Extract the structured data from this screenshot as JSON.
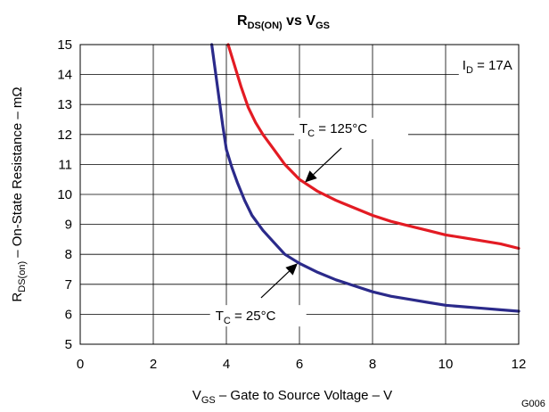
{
  "chart_data": {
    "type": "line",
    "title": {
      "main": "R",
      "sub": "DS(ON)",
      "mid": " vs V",
      "sub2": "GS"
    },
    "xlabel": {
      "main": "V",
      "sub": "GS",
      "rest": " – Gate to Source Voltage – V"
    },
    "ylabel": {
      "main": "R",
      "sub": "DS(on)",
      "rest": " – On-State Resistance – mΩ"
    },
    "xlim": [
      0,
      12
    ],
    "ylim": [
      5,
      15
    ],
    "xticks": [
      "0",
      "2",
      "4",
      "6",
      "8",
      "10",
      "12"
    ],
    "yticks": [
      "5",
      "6",
      "7",
      "8",
      "9",
      "10",
      "11",
      "12",
      "13",
      "14",
      "15"
    ],
    "grid": true,
    "figure_code": "G006",
    "condition": {
      "main": "I",
      "sub": "D",
      "rest": " = 17A"
    },
    "series": [
      {
        "color": "#e31b23",
        "label": {
          "main": "T",
          "sub": "C",
          "rest": " = 125°C"
        },
        "x": [
          4.05,
          4.2,
          4.4,
          4.6,
          4.8,
          5.0,
          5.3,
          5.6,
          6.0,
          6.5,
          7.0,
          7.5,
          8.0,
          8.5,
          9.0,
          9.5,
          10.0,
          10.5,
          11.0,
          11.5,
          12.0
        ],
        "y": [
          15.0,
          14.4,
          13.6,
          12.9,
          12.4,
          12.0,
          11.5,
          11.0,
          10.5,
          10.1,
          9.8,
          9.55,
          9.3,
          9.1,
          8.95,
          8.8,
          8.65,
          8.55,
          8.45,
          8.35,
          8.2
        ]
      },
      {
        "color": "#2b2a8a",
        "label": {
          "main": "T",
          "sub": "C",
          "rest": " = 25°C"
        },
        "x": [
          3.6,
          3.7,
          3.8,
          3.9,
          4.0,
          4.15,
          4.3,
          4.5,
          4.7,
          5.0,
          5.3,
          5.6,
          6.0,
          6.5,
          7.0,
          7.5,
          8.0,
          8.5,
          9.0,
          9.5,
          10.0,
          10.5,
          11.0,
          11.5,
          12.0
        ],
        "y": [
          15.0,
          14.1,
          13.2,
          12.3,
          11.5,
          10.9,
          10.4,
          9.8,
          9.3,
          8.8,
          8.4,
          8.0,
          7.7,
          7.4,
          7.15,
          6.95,
          6.75,
          6.6,
          6.5,
          6.4,
          6.3,
          6.25,
          6.2,
          6.15,
          6.1
        ]
      }
    ],
    "annotations": [
      {
        "series": 0,
        "at": [
          6.15,
          10.4
        ],
        "from": [
          7.15,
          11.55
        ]
      },
      {
        "series": 1,
        "at": [
          5.95,
          7.7
        ],
        "from": [
          4.95,
          6.55
        ]
      }
    ],
    "condition_pos": {
      "x": 10.8,
      "y": 14.2
    },
    "label_pos": [
      {
        "x": 6.0,
        "y": 12.05
      },
      {
        "x": 3.7,
        "y": 5.8
      }
    ]
  }
}
